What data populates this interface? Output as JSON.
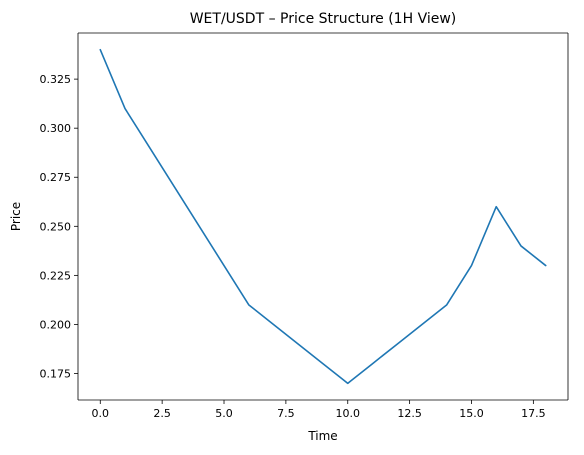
{
  "chart_data": {
    "type": "line",
    "title": "WET/USDT – Price Structure (1H View)",
    "xlabel": "Time",
    "ylabel": "Price",
    "xlim": [
      -0.9,
      18.9
    ],
    "ylim": [
      0.1615,
      0.3485
    ],
    "grid": false,
    "x_ticks": [
      0.0,
      2.5,
      5.0,
      7.5,
      10.0,
      12.5,
      15.0,
      17.5
    ],
    "x_tick_labels": [
      "0.0",
      "2.5",
      "5.0",
      "7.5",
      "10.0",
      "12.5",
      "15.0",
      "17.5"
    ],
    "y_ticks": [
      0.175,
      0.2,
      0.225,
      0.25,
      0.275,
      0.3,
      0.325
    ],
    "y_tick_labels": [
      "0.175",
      "0.200",
      "0.225",
      "0.250",
      "0.275",
      "0.300",
      "0.325"
    ],
    "x": [
      0,
      1,
      2,
      3,
      4,
      5,
      6,
      7,
      8,
      9,
      10,
      11,
      12,
      13,
      14,
      15,
      16,
      17,
      18
    ],
    "series": [
      {
        "color": "#1f77b4",
        "values": [
          0.34,
          0.31,
          0.29,
          0.27,
          0.25,
          0.23,
          0.21,
          0.2,
          0.19,
          0.18,
          0.17,
          0.18,
          0.19,
          0.2,
          0.21,
          0.23,
          0.26,
          0.24,
          0.23
        ]
      }
    ]
  }
}
